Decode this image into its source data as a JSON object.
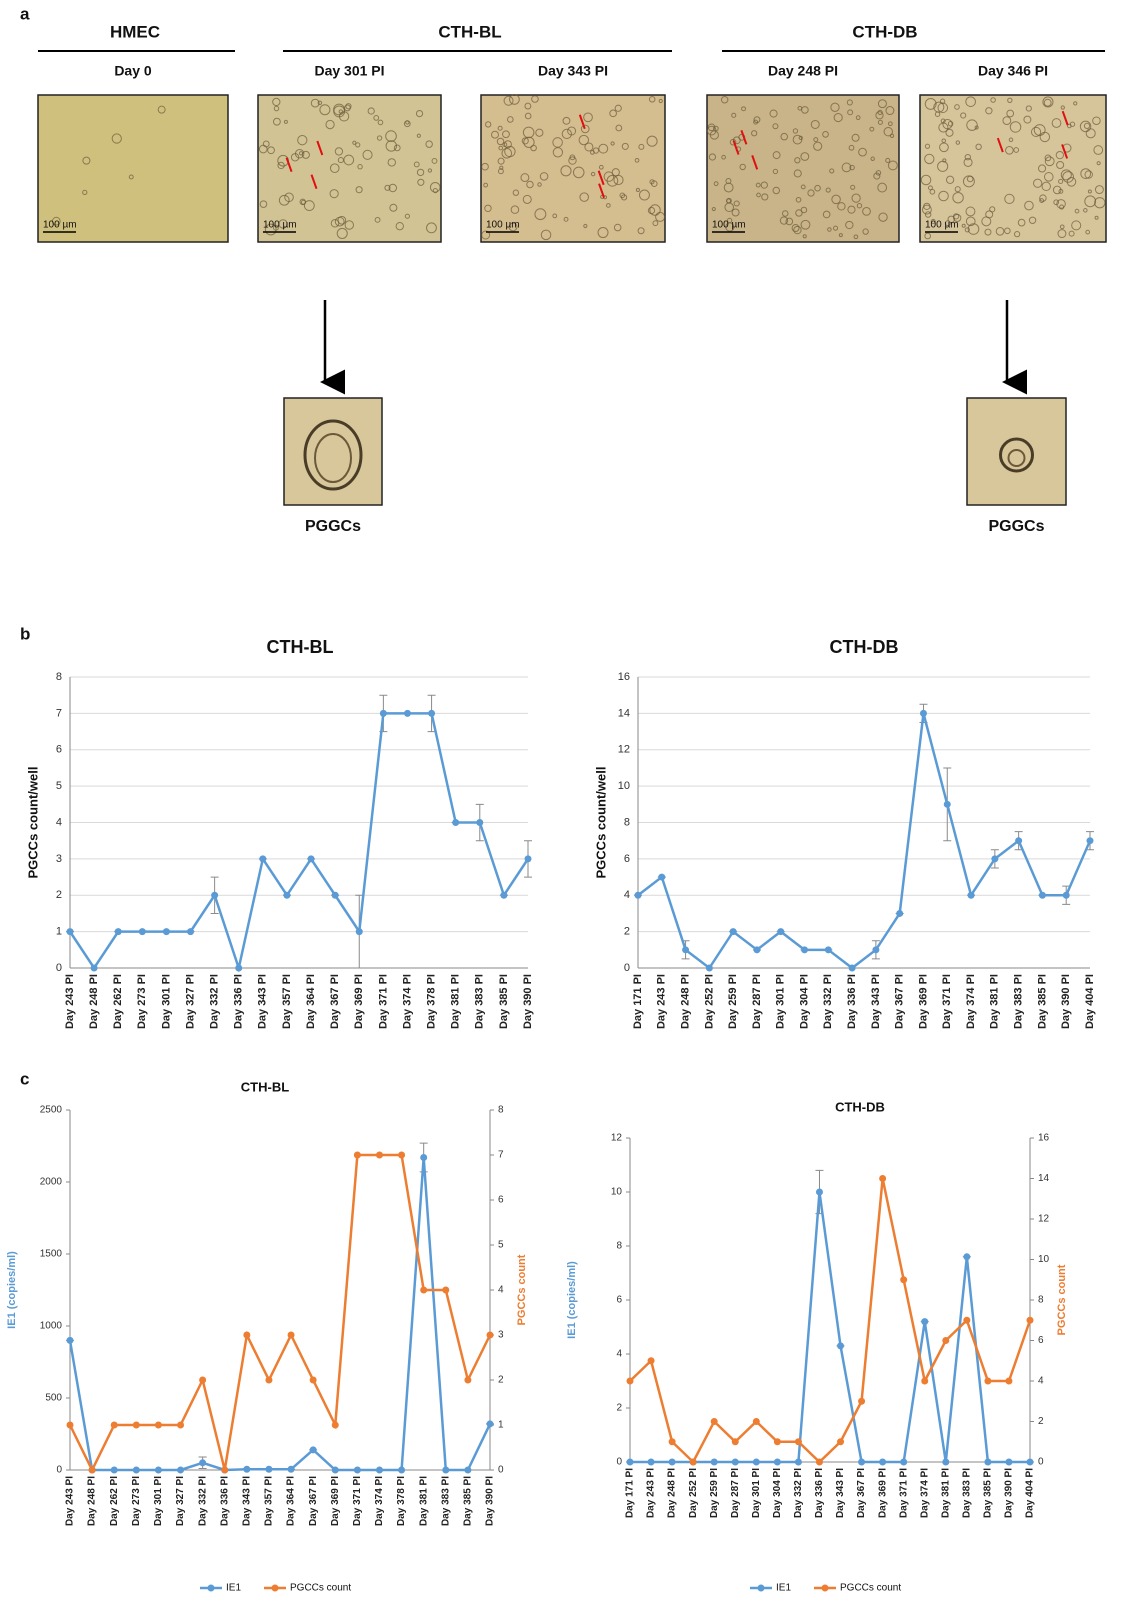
{
  "panel_labels": [
    "a",
    "b",
    "c"
  ],
  "panel_a": {
    "groups": [
      {
        "title": "HMEC"
      },
      {
        "title": "CTH-BL"
      },
      {
        "title": "CTH-DB"
      }
    ],
    "images": [
      {
        "label": "Day 0",
        "scale": "100 µm"
      },
      {
        "label": "Day 301 PI",
        "scale": "100 µm"
      },
      {
        "label": "Day 343 PI",
        "scale": "100 µm"
      },
      {
        "label": "Day 248 PI",
        "scale": "100 µm"
      },
      {
        "label": "Day 346 PI",
        "scale": "100 µm"
      }
    ],
    "outcomes": [
      {
        "label": "PGGCs"
      },
      {
        "label": "PGGCs"
      }
    ]
  },
  "chart_data": [
    {
      "type": "line",
      "title": "CTH-BL",
      "y_label": "PGCCs count/well",
      "categories": [
        "Day 243 PI",
        "Day 248 PI",
        "Day 262 PI",
        "Day 273 PI",
        "Day 301 PI",
        "Day 327 PI",
        "Day 332 PI",
        "Day 336 PI",
        "Day 343 PI",
        "Day 357 PI",
        "Day 364 PI",
        "Day 367 PI",
        "Day 369 PI",
        "Day 371 PI",
        "Day 374 PI",
        "Day 378 PI",
        "Day 381 PI",
        "Day 383 PI",
        "Day 385 PI",
        "Day 390 PI"
      ],
      "series": [
        {
          "color": "#5b9bd5",
          "values": [
            1,
            0,
            1,
            1,
            1,
            1,
            2,
            0,
            3,
            2,
            3,
            2,
            1,
            7,
            7,
            7,
            4,
            4,
            2,
            3
          ],
          "errors": [
            0,
            0,
            0,
            0,
            0,
            0,
            0.5,
            0,
            0,
            0,
            0,
            0,
            1,
            0.5,
            0,
            0.5,
            0,
            0.5,
            0,
            0.5
          ]
        }
      ],
      "ylim": [
        0,
        8
      ],
      "yticks": [
        0,
        1,
        2,
        3,
        4,
        5,
        6,
        7,
        8
      ],
      "grid": true
    },
    {
      "type": "line",
      "title": "CTH-DB",
      "y_label": "PGCCs count/well",
      "categories": [
        "Day 171 PI",
        "Day 243 PI",
        "Day 248 PI",
        "Day 252 PI",
        "Day 259 PI",
        "Day 287 PI",
        "Day 301 PI",
        "Day 304 PI",
        "Day 332 PI",
        "Day 336 PI",
        "Day 343 PI",
        "Day 367 PI",
        "Day 369 PI",
        "Day 371 PI",
        "Day 374 PI",
        "Day 381 PI",
        "Day 383 PI",
        "Day 385 PI",
        "Day 390 PI",
        "Day 404 PI"
      ],
      "series": [
        {
          "color": "#5b9bd5",
          "values": [
            4,
            5,
            1,
            0,
            2,
            1,
            2,
            1,
            1,
            0,
            1,
            3,
            14,
            9,
            4,
            6,
            7,
            4,
            4,
            7
          ],
          "errors": [
            0,
            0,
            0.5,
            0,
            0,
            0,
            0,
            0,
            0,
            0,
            0.5,
            0,
            0.5,
            2,
            0,
            0.5,
            0.5,
            0,
            0.5,
            0.5
          ]
        }
      ],
      "ylim": [
        0,
        16
      ],
      "yticks": [
        0,
        2,
        4,
        6,
        8,
        10,
        12,
        14,
        16
      ],
      "grid": true
    },
    {
      "type": "line",
      "title": "CTH-BL",
      "y_label": "IE1 (copies/ml)",
      "y2_label": "PGCCs count",
      "categories": [
        "Day 243 PI",
        "Day 248 PI",
        "Day 262 PI",
        "Day 273 PI",
        "Day 301 PI",
        "Day 327 PI",
        "Day 332 PI",
        "Day 336 PI",
        "Day 343 PI",
        "Day 357 PI",
        "Day 364 PI",
        "Day 367 PI",
        "Day 369 PI",
        "Day 371 PI",
        "Day 374 PI",
        "Day 378 PI",
        "Day 381 PI",
        "Day 383 PI",
        "Day 385 PI",
        "Day 390 PI"
      ],
      "series": [
        {
          "name": "IE1",
          "color": "#5b9bd5",
          "values": [
            900,
            0,
            0,
            0,
            0,
            0,
            50,
            0,
            5,
            5,
            5,
            140,
            0,
            0,
            0,
            0,
            2170,
            0,
            0,
            320
          ],
          "errors": [
            0,
            0,
            0,
            0,
            0,
            0,
            40,
            0,
            0,
            0,
            0,
            0,
            0,
            0,
            0,
            0,
            100,
            0,
            0,
            0
          ]
        },
        {
          "name": "PGCCs count",
          "color": "#ed7d31",
          "axis": "y2",
          "values": [
            1,
            0,
            1,
            1,
            1,
            1,
            2,
            0,
            3,
            2,
            3,
            2,
            1,
            7,
            7,
            7,
            4,
            4,
            2,
            3
          ]
        }
      ],
      "ylim": [
        0,
        2500
      ],
      "yticks": [
        0,
        500,
        1000,
        1500,
        2000,
        2500
      ],
      "y2lim": [
        0,
        8
      ],
      "y2ticks": [
        0,
        1,
        2,
        3,
        4,
        5,
        6,
        7,
        8
      ],
      "grid": false,
      "legend": "bottom"
    },
    {
      "type": "line",
      "title": "CTH-DB",
      "y_label": "IE1 (copies/ml)",
      "y2_label": "PGCCs count",
      "categories": [
        "Day 171 PI",
        "Day 243 PI",
        "Day 248 PI",
        "Day 252 PI",
        "Day 259 PI",
        "Day 287 PI",
        "Day 301 PI",
        "Day 304 PI",
        "Day 332 PI",
        "Day 336 PI",
        "Day 343 PI",
        "Day 367 PI",
        "Day 369 PI",
        "Day 371 PI",
        "Day 374 PI",
        "Day 381 PI",
        "Day 383 PI",
        "Day 385 PI",
        "Day 390 PI",
        "Day 404 PI"
      ],
      "series": [
        {
          "name": "IE1",
          "color": "#5b9bd5",
          "values": [
            0,
            0,
            0,
            0,
            0,
            0,
            0,
            0,
            0,
            10,
            4.3,
            0,
            0,
            0,
            5.2,
            0,
            7.6,
            0,
            0,
            0
          ],
          "errors": [
            0,
            0,
            0,
            0,
            0,
            0,
            0,
            0,
            0,
            0.8,
            0,
            0,
            0,
            0,
            0,
            0,
            0,
            0,
            0,
            0
          ]
        },
        {
          "name": "PGCCs count",
          "color": "#ed7d31",
          "axis": "y2",
          "values": [
            4,
            5,
            1,
            0,
            2,
            1,
            2,
            1,
            1,
            0,
            1,
            3,
            14,
            9,
            4,
            6,
            7,
            4,
            4,
            7
          ]
        }
      ],
      "ylim": [
        0,
        12
      ],
      "yticks": [
        0,
        2,
        4,
        6,
        8,
        10,
        12
      ],
      "y2lim": [
        0,
        16
      ],
      "y2ticks": [
        0,
        2,
        4,
        6,
        8,
        10,
        12,
        14,
        16
      ],
      "grid": false,
      "legend": "bottom"
    }
  ]
}
